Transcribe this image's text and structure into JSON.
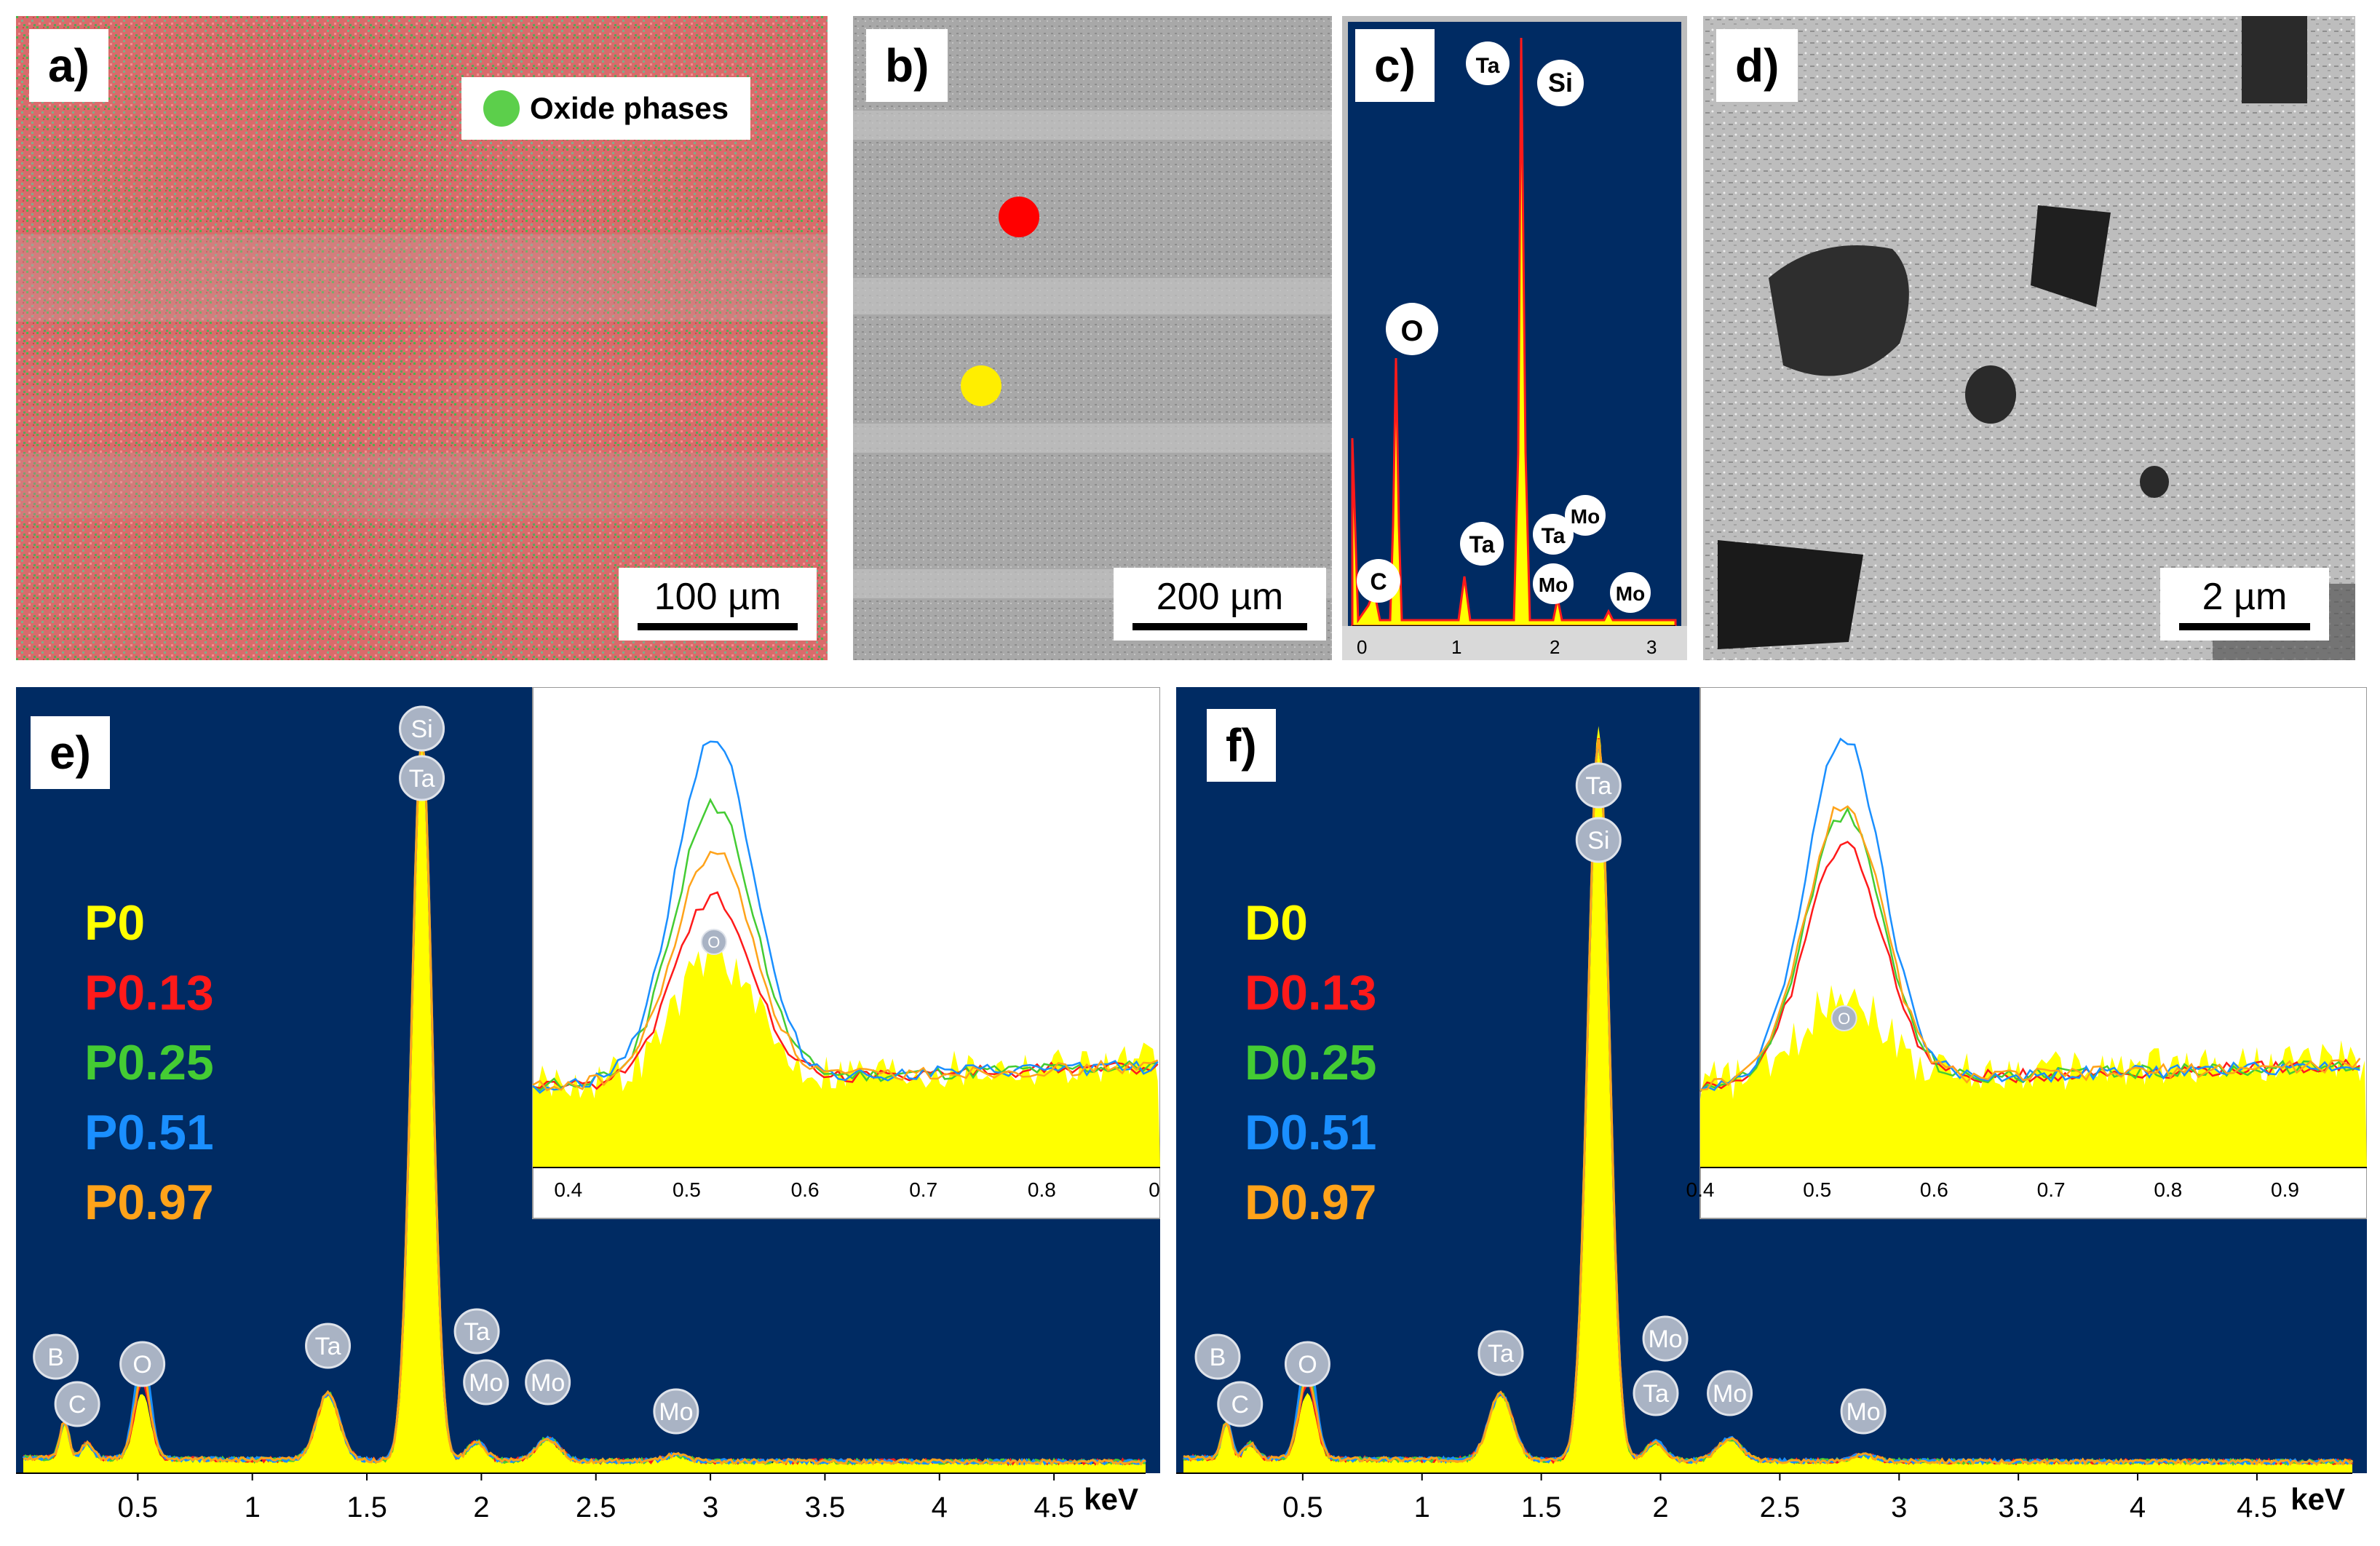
{
  "panels": {
    "a": {
      "label": "a)",
      "legend": "Oxide phases",
      "legend_color": "#5ccf4b",
      "scale": "100 µm"
    },
    "b": {
      "label": "b)",
      "scale": "200 µm",
      "marker_colors": [
        "#ff0000",
        "#ffee00"
      ]
    },
    "c": {
      "label": "c)",
      "peaks": [
        "Ta",
        "Si",
        "O",
        "C",
        "Ta",
        "Ta",
        "Mo",
        "Mo",
        "Mo"
      ],
      "x_ticks": [
        "0",
        "1",
        "2",
        "3"
      ]
    },
    "d": {
      "label": "d)",
      "scale": "2 µm"
    },
    "e": {
      "label": "e)"
    },
    "f": {
      "label": "f)"
    }
  },
  "colors": {
    "spectrum_bg": "#002b63",
    "fill": "#ffff00",
    "red": "#ff1a1a",
    "green": "#44cc33",
    "blue": "#1a8fff",
    "orange": "#ffa31a"
  },
  "chart_data": [
    {
      "id": "e",
      "type": "line",
      "title": "",
      "xlabel": "keV",
      "ylabel": "",
      "xlim": [
        0,
        4.9
      ],
      "x_ticks": [
        "0.5",
        "1",
        "1.5",
        "2",
        "2.5",
        "3",
        "3.5",
        "4",
        "4.5"
      ],
      "series": [
        {
          "name": "P0",
          "color": "#ffff00"
        },
        {
          "name": "P0.13",
          "color": "#ff1a1a"
        },
        {
          "name": "P0.25",
          "color": "#44cc33"
        },
        {
          "name": "P0.51",
          "color": "#1a8fff"
        },
        {
          "name": "P0.97",
          "color": "#ffa31a"
        }
      ],
      "peaks": [
        {
          "label": "B",
          "x": 0.18,
          "height": 0.04
        },
        {
          "label": "C",
          "x": 0.28,
          "height": 0.03
        },
        {
          "label": "O",
          "x": 0.52,
          "height": 0.09
        },
        {
          "label": "Ta",
          "x": 1.33,
          "height": 0.09
        },
        {
          "label": "Si",
          "x": 1.74,
          "height": 1.0
        },
        {
          "label": "Ta",
          "x": 1.74,
          "height": 1.0
        },
        {
          "label": "Ta",
          "x": 1.98,
          "height": 0.03
        },
        {
          "label": "Mo",
          "x": 2.02,
          "height": 0.03
        },
        {
          "label": "Mo",
          "x": 2.29,
          "height": 0.03
        },
        {
          "label": "Mo",
          "x": 2.85,
          "height": 0.01
        }
      ],
      "inset": {
        "x_ticks": [
          "0.4",
          "0.5",
          "0.6",
          "0.7",
          "0.8",
          "0"
        ],
        "xlim": [
          0.37,
          0.9
        ],
        "peak_label": "O",
        "peak_heights": {
          "P0": 0.42,
          "P0.13": 0.48,
          "P0.25": 0.72,
          "P0.51": 0.9,
          "P0.97": 0.6
        }
      }
    },
    {
      "id": "f",
      "type": "line",
      "title": "",
      "xlabel": "keV",
      "ylabel": "",
      "xlim": [
        0,
        4.9
      ],
      "x_ticks": [
        "0.5",
        "1",
        "1.5",
        "2",
        "2.5",
        "3",
        "3.5",
        "4",
        "4.5"
      ],
      "series": [
        {
          "name": "D0",
          "color": "#ffff00"
        },
        {
          "name": "D0.13",
          "color": "#ff1a1a"
        },
        {
          "name": "D0.25",
          "color": "#44cc33"
        },
        {
          "name": "D0.51",
          "color": "#1a8fff"
        },
        {
          "name": "D0.97",
          "color": "#ffa31a"
        }
      ],
      "peaks": [
        {
          "label": "B",
          "x": 0.18,
          "height": 0.04
        },
        {
          "label": "C",
          "x": 0.28,
          "height": 0.03
        },
        {
          "label": "O",
          "x": 0.52,
          "height": 0.09
        },
        {
          "label": "Ta",
          "x": 1.33,
          "height": 0.09
        },
        {
          "label": "Ta",
          "x": 1.74,
          "height": 1.0
        },
        {
          "label": "Si",
          "x": 1.74,
          "height": 1.0
        },
        {
          "label": "Mo",
          "x": 2.02,
          "height": 0.03
        },
        {
          "label": "Ta",
          "x": 1.98,
          "height": 0.03
        },
        {
          "label": "Mo",
          "x": 2.29,
          "height": 0.03
        },
        {
          "label": "Mo",
          "x": 2.85,
          "height": 0.01
        }
      ],
      "inset": {
        "x_ticks": [
          "0.4",
          "0.5",
          "0.6",
          "0.7",
          "0.8",
          "0.9"
        ],
        "xlim": [
          0.4,
          0.97
        ],
        "peak_label": "O",
        "peak_heights": {
          "D0": 0.3,
          "D0.13": 0.62,
          "D0.25": 0.7,
          "D0.51": 0.9,
          "D0.97": 0.73
        }
      }
    }
  ]
}
